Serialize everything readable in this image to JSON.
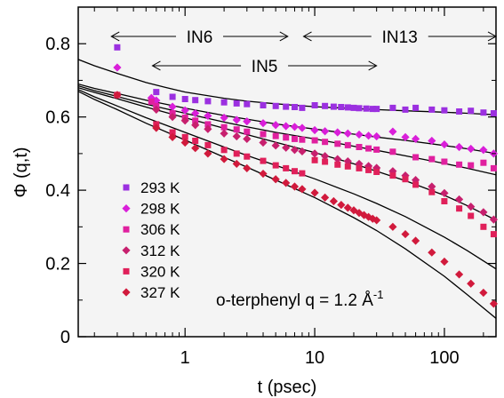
{
  "chart_data": {
    "type": "scatter",
    "xscale": "log",
    "xlim": [
      0.15,
      250
    ],
    "ylim": [
      0,
      0.9
    ],
    "xlabel": "t  (psec)",
    "ylabel": "Φ (q,t)",
    "xticks": [
      1,
      10,
      100
    ],
    "xtick_labels": [
      "1",
      "10",
      "100"
    ],
    "yticks": [
      0,
      0.2,
      0.4,
      0.6,
      0.8
    ],
    "ytick_labels": [
      "0",
      "0.2",
      "0.4",
      "0.6",
      "0.8"
    ],
    "legend_position": "bottom-left",
    "annotation": "o-terphenyl      q = 1.2 Å",
    "annotation_sup": "-1",
    "ranges": [
      {
        "label": "IN6",
        "x_start": 0.27,
        "x_end": 6.2,
        "y": 0.82
      },
      {
        "label": "IN13",
        "x_start": 8.2,
        "x_end": 250,
        "y": 0.82
      },
      {
        "label": "IN5",
        "x_start": 0.56,
        "x_end": 30,
        "y": 0.74
      }
    ],
    "series": [
      {
        "name": "293 K",
        "color": "#9b30e0",
        "marker": "square",
        "points": [
          [
            0.3,
            0.79
          ],
          [
            0.6,
            0.668
          ],
          [
            0.8,
            0.655
          ],
          [
            1,
            0.649
          ],
          [
            1.2,
            0.646
          ],
          [
            1.5,
            0.643
          ],
          [
            2,
            0.64
          ],
          [
            2.5,
            0.637
          ],
          [
            3,
            0.635
          ],
          [
            4,
            0.632
          ],
          [
            5,
            0.63
          ],
          [
            6,
            0.628
          ],
          [
            7,
            0.627
          ],
          [
            8,
            0.625
          ],
          [
            10,
            0.632
          ],
          [
            12,
            0.63
          ],
          [
            14,
            0.628
          ],
          [
            16,
            0.627
          ],
          [
            18,
            0.626
          ],
          [
            20,
            0.625
          ],
          [
            22,
            0.624
          ],
          [
            25,
            0.623
          ],
          [
            28,
            0.622
          ],
          [
            30,
            0.622
          ],
          [
            40,
            0.625
          ],
          [
            50,
            0.62
          ],
          [
            60,
            0.625
          ],
          [
            80,
            0.62
          ],
          [
            100,
            0.618
          ],
          [
            130,
            0.615
          ],
          [
            160,
            0.617
          ],
          [
            200,
            0.612
          ],
          [
            240,
            0.61
          ]
        ],
        "fit": [
          [
            0.15,
            0.757
          ],
          [
            0.2,
            0.74
          ],
          [
            0.3,
            0.719
          ],
          [
            0.5,
            0.694
          ],
          [
            0.7,
            0.681
          ],
          [
            1,
            0.668
          ],
          [
            2,
            0.651
          ],
          [
            3,
            0.643
          ],
          [
            5,
            0.636
          ],
          [
            7,
            0.632
          ],
          [
            10,
            0.628
          ],
          [
            20,
            0.623
          ],
          [
            30,
            0.62
          ],
          [
            50,
            0.617
          ],
          [
            100,
            0.613
          ],
          [
            150,
            0.61
          ],
          [
            250,
            0.606
          ]
        ]
      },
      {
        "name": "298 K",
        "color": "#d91fd9",
        "marker": "diamond",
        "points": [
          [
            0.3,
            0.735
          ],
          [
            0.55,
            0.652
          ],
          [
            0.6,
            0.645
          ],
          [
            0.8,
            0.628
          ],
          [
            1,
            0.618
          ],
          [
            1.2,
            0.61
          ],
          [
            1.5,
            0.603
          ],
          [
            2,
            0.598
          ],
          [
            2.5,
            0.592
          ],
          [
            3,
            0.588
          ],
          [
            4,
            0.583
          ],
          [
            5,
            0.578
          ],
          [
            6,
            0.575
          ],
          [
            7,
            0.573
          ],
          [
            8,
            0.57
          ],
          [
            10,
            0.564
          ],
          [
            12,
            0.561
          ],
          [
            15,
            0.558
          ],
          [
            18,
            0.555
          ],
          [
            22,
            0.552
          ],
          [
            26,
            0.549
          ],
          [
            30,
            0.547
          ],
          [
            40,
            0.56
          ],
          [
            50,
            0.545
          ],
          [
            60,
            0.54
          ],
          [
            80,
            0.535
          ],
          [
            100,
            0.525
          ],
          [
            130,
            0.518
          ],
          [
            160,
            0.513
          ],
          [
            200,
            0.51
          ],
          [
            240,
            0.5
          ]
        ],
        "fit": [
          [
            0.15,
            0.69
          ],
          [
            0.2,
            0.678
          ],
          [
            0.3,
            0.664
          ],
          [
            0.5,
            0.646
          ],
          [
            1,
            0.624
          ],
          [
            2,
            0.604
          ],
          [
            3,
            0.594
          ],
          [
            5,
            0.581
          ],
          [
            10,
            0.567
          ],
          [
            20,
            0.553
          ],
          [
            30,
            0.545
          ],
          [
            50,
            0.536
          ],
          [
            100,
            0.522
          ],
          [
            150,
            0.513
          ],
          [
            250,
            0.5
          ]
        ]
      },
      {
        "name": "306 K",
        "color": "#e0209f",
        "marker": "square",
        "points": [
          [
            0.3,
            0.66
          ],
          [
            0.55,
            0.642
          ],
          [
            0.6,
            0.63
          ],
          [
            0.8,
            0.61
          ],
          [
            1,
            0.598
          ],
          [
            1.2,
            0.59
          ],
          [
            1.5,
            0.58
          ],
          [
            2,
            0.572
          ],
          [
            2.5,
            0.566
          ],
          [
            3,
            0.56
          ],
          [
            4,
            0.553
          ],
          [
            5,
            0.548
          ],
          [
            6,
            0.544
          ],
          [
            7,
            0.54
          ],
          [
            8,
            0.538
          ],
          [
            10,
            0.536
          ],
          [
            12,
            0.532
          ],
          [
            15,
            0.527
          ],
          [
            18,
            0.523
          ],
          [
            22,
            0.518
          ],
          [
            26,
            0.514
          ],
          [
            30,
            0.511
          ],
          [
            40,
            0.505
          ],
          [
            60,
            0.49
          ],
          [
            80,
            0.485
          ],
          [
            100,
            0.478
          ],
          [
            130,
            0.47
          ],
          [
            160,
            0.468
          ],
          [
            200,
            0.475
          ],
          [
            240,
            0.46
          ]
        ],
        "fit": [
          [
            0.15,
            0.685
          ],
          [
            0.2,
            0.672
          ],
          [
            0.3,
            0.656
          ],
          [
            0.5,
            0.635
          ],
          [
            1,
            0.61
          ],
          [
            2,
            0.586
          ],
          [
            3,
            0.573
          ],
          [
            5,
            0.558
          ],
          [
            10,
            0.54
          ],
          [
            20,
            0.52
          ],
          [
            30,
            0.509
          ],
          [
            50,
            0.494
          ],
          [
            100,
            0.473
          ],
          [
            150,
            0.46
          ],
          [
            250,
            0.442
          ]
        ]
      },
      {
        "name": "312 K",
        "color": "#c7206e",
        "marker": "diamond",
        "points": [
          [
            0.3,
            0.66
          ],
          [
            0.6,
            0.62
          ],
          [
            0.8,
            0.6
          ],
          [
            1,
            0.59
          ],
          [
            1.2,
            0.578
          ],
          [
            1.5,
            0.567
          ],
          [
            2,
            0.555
          ],
          [
            2.5,
            0.547
          ],
          [
            3,
            0.54
          ],
          [
            4,
            0.53
          ],
          [
            5,
            0.522
          ],
          [
            6,
            0.516
          ],
          [
            7,
            0.51
          ],
          [
            8,
            0.506
          ],
          [
            10,
            0.5
          ],
          [
            12,
            0.493
          ],
          [
            15,
            0.485
          ],
          [
            18,
            0.479
          ],
          [
            22,
            0.472
          ],
          [
            26,
            0.466
          ],
          [
            30,
            0.461
          ],
          [
            40,
            0.452
          ],
          [
            50,
            0.44
          ],
          [
            60,
            0.428
          ],
          [
            80,
            0.41
          ],
          [
            100,
            0.392
          ],
          [
            130,
            0.375
          ],
          [
            160,
            0.355
          ],
          [
            200,
            0.34
          ],
          [
            240,
            0.32
          ]
        ],
        "fit": [
          [
            0.15,
            0.68
          ],
          [
            0.2,
            0.667
          ],
          [
            0.3,
            0.65
          ],
          [
            0.5,
            0.627
          ],
          [
            1,
            0.598
          ],
          [
            2,
            0.569
          ],
          [
            3,
            0.552
          ],
          [
            5,
            0.531
          ],
          [
            10,
            0.503
          ],
          [
            20,
            0.472
          ],
          [
            30,
            0.452
          ],
          [
            50,
            0.426
          ],
          [
            100,
            0.386
          ],
          [
            150,
            0.358
          ],
          [
            250,
            0.318
          ]
        ]
      },
      {
        "name": "320 K",
        "color": "#e0205a",
        "marker": "square",
        "points": [
          [
            0.3,
            0.66
          ],
          [
            0.6,
            0.58
          ],
          [
            0.8,
            0.558
          ],
          [
            1,
            0.545
          ],
          [
            1.2,
            0.535
          ],
          [
            1.5,
            0.523
          ],
          [
            2,
            0.51
          ],
          [
            2.5,
            0.5
          ],
          [
            3,
            0.492
          ],
          [
            4,
            0.48
          ],
          [
            5,
            0.468
          ],
          [
            6,
            0.46
          ],
          [
            7,
            0.452
          ],
          [
            8,
            0.446
          ],
          [
            10,
            0.482
          ],
          [
            12,
            0.478
          ],
          [
            15,
            0.47
          ],
          [
            18,
            0.465
          ],
          [
            22,
            0.46
          ],
          [
            26,
            0.455
          ],
          [
            30,
            0.45
          ],
          [
            40,
            0.44
          ],
          [
            50,
            0.43
          ],
          [
            60,
            0.415
          ],
          [
            80,
            0.395
          ],
          [
            100,
            0.37
          ],
          [
            130,
            0.35
          ],
          [
            160,
            0.33
          ],
          [
            200,
            0.3
          ],
          [
            240,
            0.28
          ]
        ],
        "fit": [
          [
            0.15,
            0.675
          ],
          [
            0.2,
            0.655
          ],
          [
            0.3,
            0.63
          ],
          [
            0.5,
            0.598
          ],
          [
            1,
            0.558
          ],
          [
            2,
            0.518
          ],
          [
            3,
            0.495
          ],
          [
            5,
            0.468
          ],
          [
            10,
            0.431
          ],
          [
            20,
            0.39
          ],
          [
            30,
            0.364
          ],
          [
            50,
            0.328
          ],
          [
            100,
            0.272
          ],
          [
            150,
            0.235
          ],
          [
            250,
            0.185
          ]
        ]
      },
      {
        "name": "327 K",
        "color": "#d11a3c",
        "marker": "diamond",
        "points": [
          [
            0.3,
            0.66
          ],
          [
            0.6,
            0.57
          ],
          [
            0.8,
            0.545
          ],
          [
            1,
            0.53
          ],
          [
            1.2,
            0.515
          ],
          [
            1.5,
            0.5
          ],
          [
            2,
            0.485
          ],
          [
            2.5,
            0.472
          ],
          [
            3,
            0.46
          ],
          [
            4,
            0.445
          ],
          [
            5,
            0.43
          ],
          [
            6,
            0.42
          ],
          [
            7,
            0.41
          ],
          [
            8,
            0.403
          ],
          [
            10,
            0.393
          ],
          [
            12,
            0.38
          ],
          [
            14,
            0.37
          ],
          [
            16,
            0.36
          ],
          [
            18,
            0.352
          ],
          [
            20,
            0.345
          ],
          [
            22,
            0.338
          ],
          [
            24,
            0.332
          ],
          [
            26,
            0.327
          ],
          [
            28,
            0.322
          ],
          [
            30,
            0.318
          ],
          [
            40,
            0.3
          ],
          [
            50,
            0.28
          ],
          [
            60,
            0.262
          ],
          [
            80,
            0.23
          ],
          [
            100,
            0.205
          ],
          [
            130,
            0.17
          ],
          [
            160,
            0.145
          ],
          [
            200,
            0.12
          ],
          [
            240,
            0.09
          ]
        ],
        "fit": [
          [
            0.15,
            0.67
          ],
          [
            0.2,
            0.648
          ],
          [
            0.3,
            0.62
          ],
          [
            0.5,
            0.583
          ],
          [
            1,
            0.537
          ],
          [
            2,
            0.49
          ],
          [
            3,
            0.463
          ],
          [
            5,
            0.428
          ],
          [
            10,
            0.38
          ],
          [
            20,
            0.325
          ],
          [
            30,
            0.29
          ],
          [
            50,
            0.24
          ],
          [
            100,
            0.165
          ],
          [
            150,
            0.115
          ],
          [
            250,
            0.05
          ]
        ]
      }
    ]
  }
}
